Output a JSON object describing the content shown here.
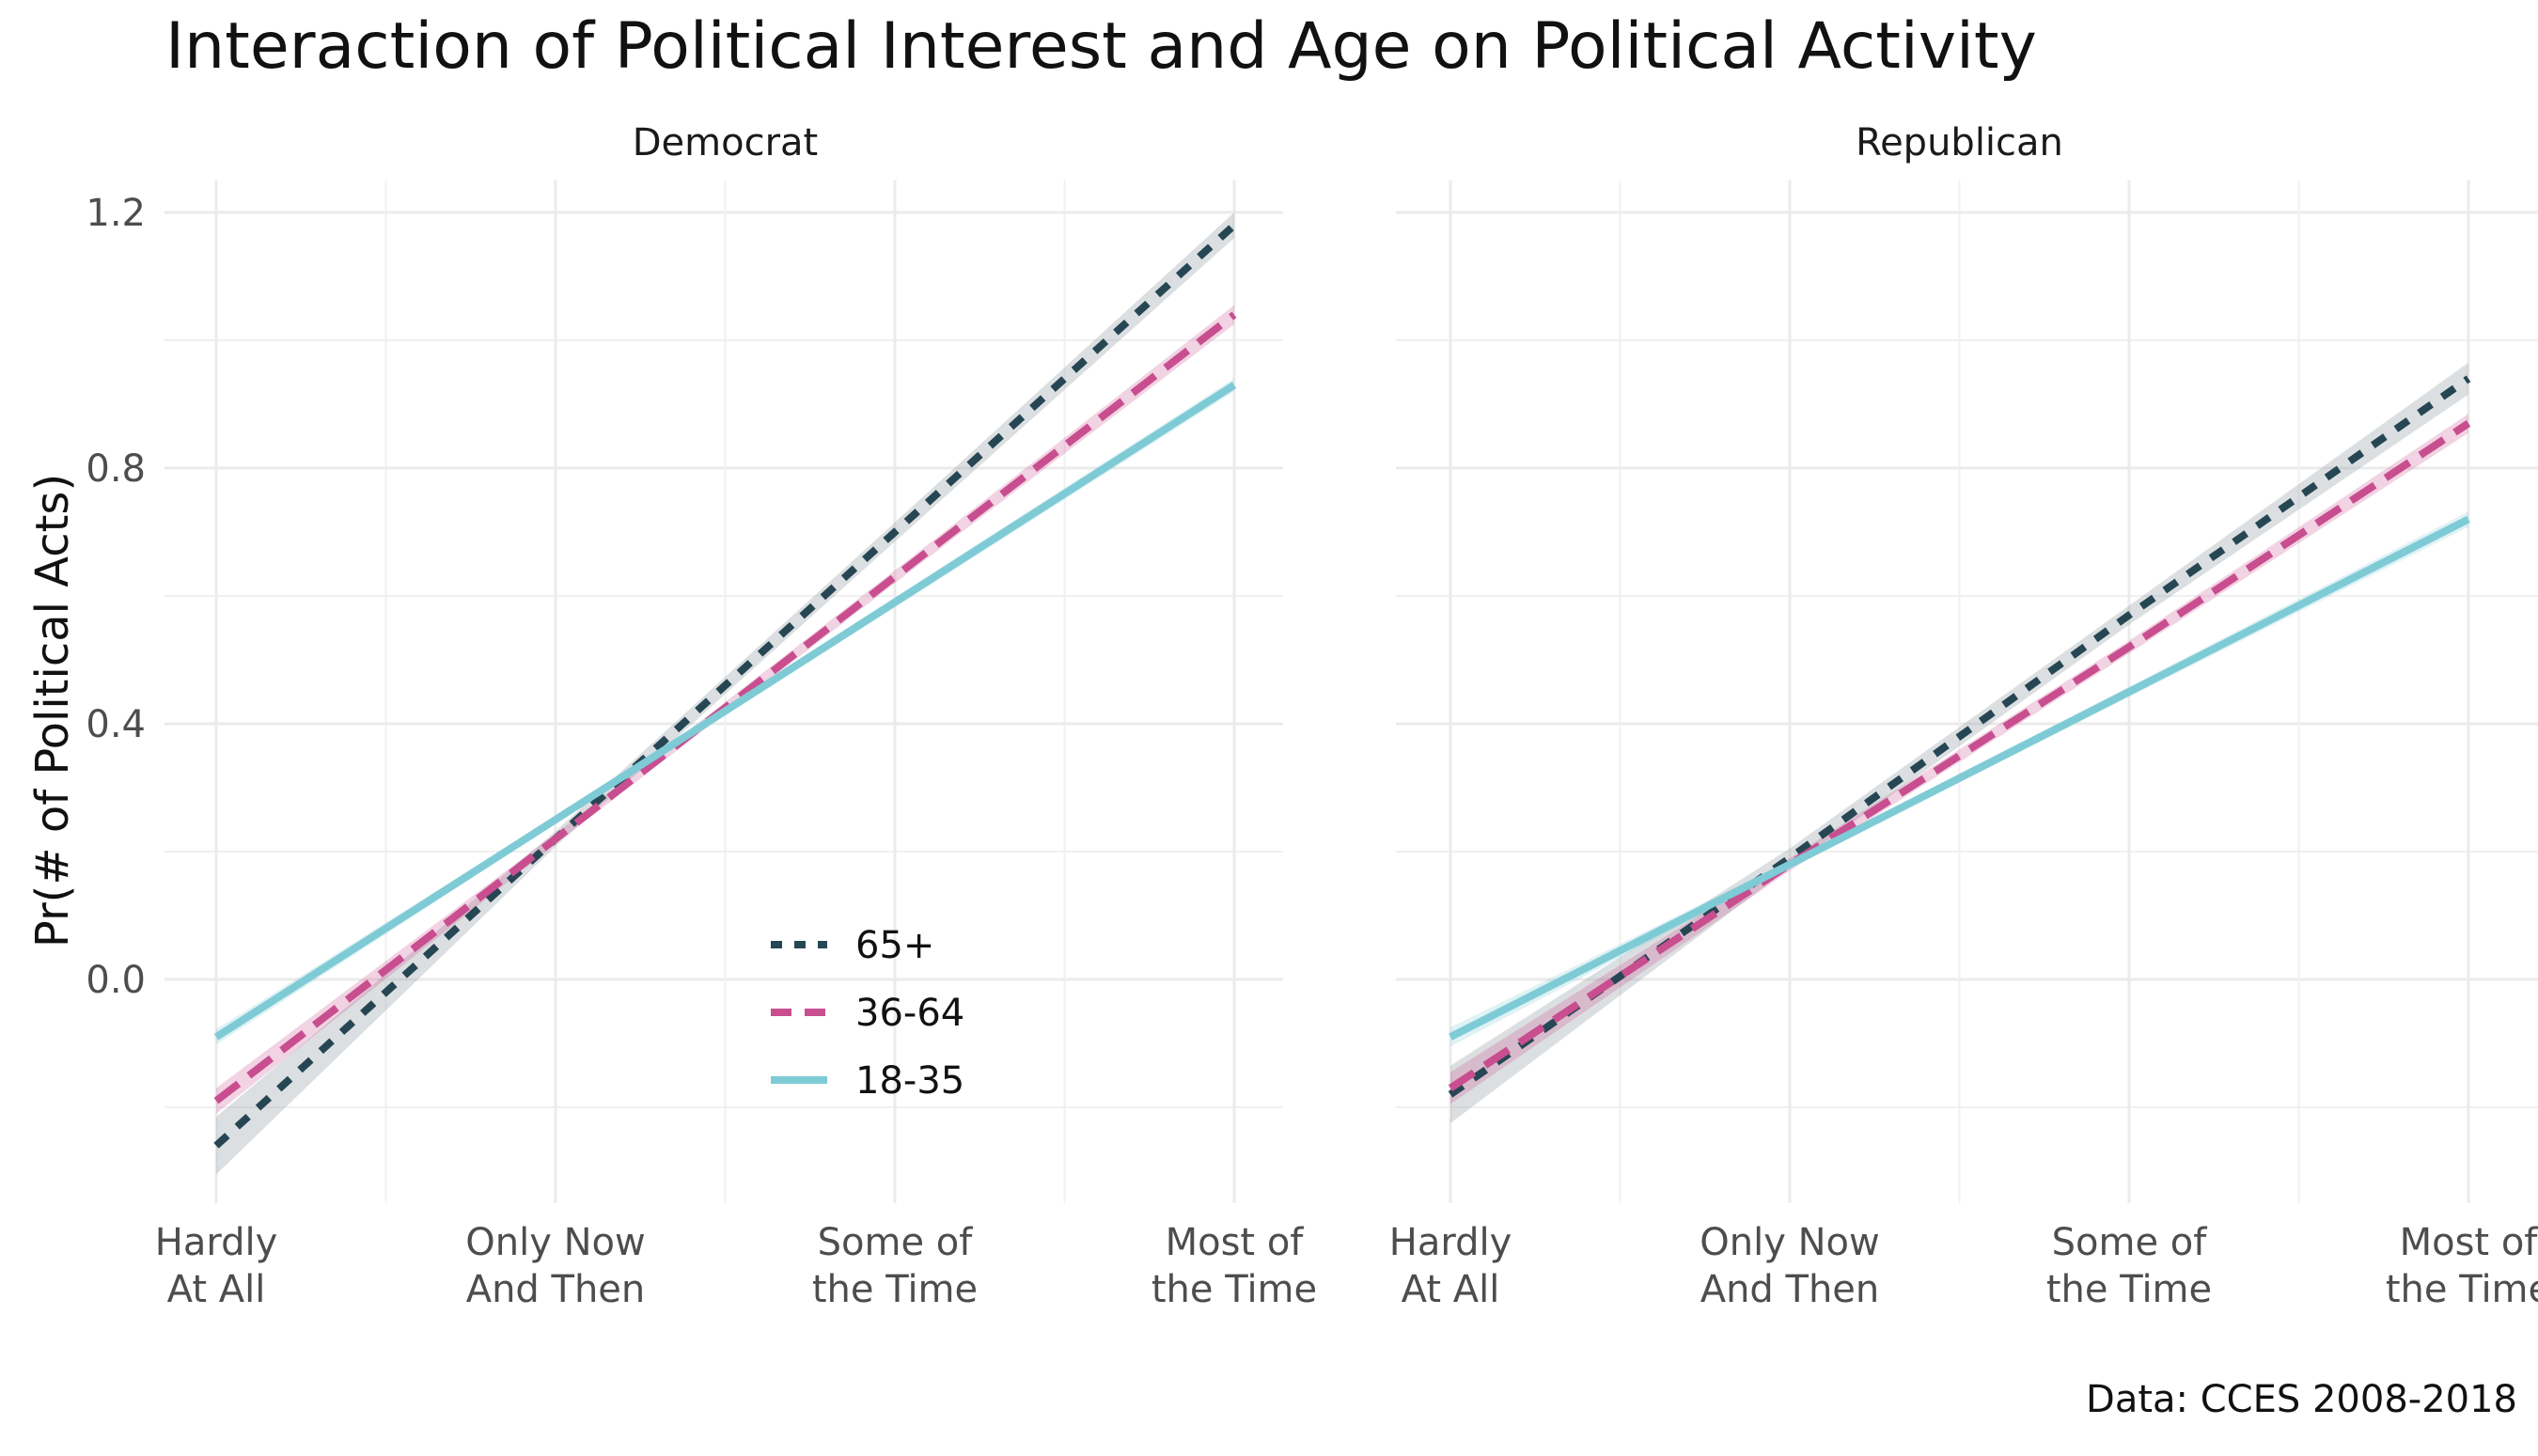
{
  "chart_data": {
    "type": "line",
    "title": "Interaction of Political Interest and Age on Political Activity",
    "caption": "Data: CCES 2008-2018",
    "ylabel": "Pr(# of Political Acts)",
    "xlabel": "",
    "ylim": [
      -0.35,
      1.25
    ],
    "yticks": [
      0.0,
      0.4,
      0.8,
      1.2
    ],
    "yticks_labels": [
      "0.0",
      "0.4",
      "0.8",
      "1.2"
    ],
    "categories": [
      "Hardly At All",
      "Only Now And Then",
      "Some of the Time",
      "Most of the Time"
    ],
    "category_labels": [
      [
        "Hardly",
        "At All"
      ],
      [
        "Only Now",
        "And Then"
      ],
      [
        "Some of",
        "the Time"
      ],
      [
        "Most of",
        "the Time"
      ]
    ],
    "grid": true,
    "legend": {
      "position": "inside-bottom-right of first panel",
      "entries": [
        "65+",
        "36-64",
        "18-35"
      ]
    },
    "series_styles": [
      {
        "name": "65+",
        "color": "#264653",
        "dash": "dashed-short"
      },
      {
        "name": "36-64",
        "color": "#c84e8f",
        "dash": "dashed-long"
      },
      {
        "name": "18-35",
        "color": "#7ecbd6",
        "dash": "solid"
      }
    ],
    "panels": [
      {
        "facet": "Democrat",
        "series": [
          {
            "name": "65+",
            "values": [
              -0.26,
              0.22,
              0.7,
              1.18
            ],
            "ci": [
              0.045,
              0.012,
              0.015,
              0.02
            ]
          },
          {
            "name": "36-64",
            "values": [
              -0.19,
              0.22,
              0.63,
              1.04
            ],
            "ci": [
              0.02,
              0.008,
              0.01,
              0.015
            ]
          },
          {
            "name": "18-35",
            "values": [
              -0.09,
              0.25,
              0.59,
              0.93
            ],
            "ci": [
              0.012,
              0.006,
              0.008,
              0.01
            ]
          }
        ]
      },
      {
        "facet": "Republican",
        "series": [
          {
            "name": "65+",
            "values": [
              -0.18,
              0.19,
              0.57,
              0.94
            ],
            "ci": [
              0.045,
              0.015,
              0.015,
              0.025
            ]
          },
          {
            "name": "36-64",
            "values": [
              -0.17,
              0.18,
              0.52,
              0.87
            ],
            "ci": [
              0.025,
              0.01,
              0.01,
              0.015
            ]
          },
          {
            "name": "18-35",
            "values": [
              -0.09,
              0.18,
              0.45,
              0.72
            ],
            "ci": [
              0.015,
              0.006,
              0.008,
              0.012
            ]
          }
        ]
      }
    ]
  }
}
